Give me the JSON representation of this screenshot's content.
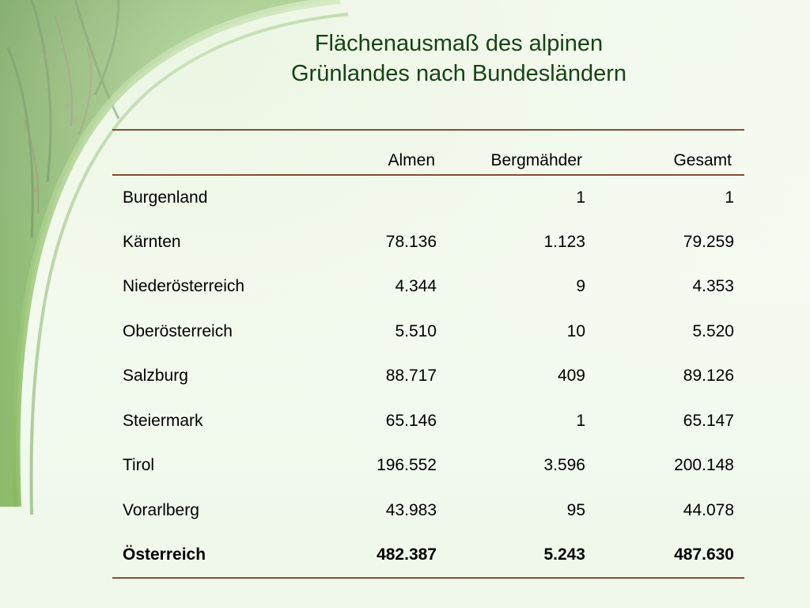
{
  "colors": {
    "title": "#154315",
    "rule": "#8a4c32",
    "background": "#f4faf0",
    "grass_band": "#4d8a2c"
  },
  "title": {
    "line1": "Flächenausmaß des alpinen",
    "line2": "Grünlandes nach Bundesländern"
  },
  "table": {
    "headers": {
      "name": "",
      "almen": "Almen",
      "bergmaehder": "Bergmähder",
      "gesamt": "Gesamt"
    },
    "rows": [
      {
        "name": "Burgenland",
        "almen": "",
        "bergmaehder": "1",
        "gesamt": "1"
      },
      {
        "name": "Kärnten",
        "almen": "78.136",
        "bergmaehder": "1.123",
        "gesamt": "79.259"
      },
      {
        "name": "Niederösterreich",
        "almen": "4.344",
        "bergmaehder": "9",
        "gesamt": "4.353"
      },
      {
        "name": "Oberösterreich",
        "almen": "5.510",
        "bergmaehder": "10",
        "gesamt": "5.520"
      },
      {
        "name": "Salzburg",
        "almen": "88.717",
        "bergmaehder": "409",
        "gesamt": "89.126"
      },
      {
        "name": "Steiermark",
        "almen": "65.146",
        "bergmaehder": "1",
        "gesamt": "65.147"
      },
      {
        "name": "Tirol",
        "almen": "196.552",
        "bergmaehder": "3.596",
        "gesamt": "200.148"
      },
      {
        "name": "Vorarlberg",
        "almen": "43.983",
        "bergmaehder": "95",
        "gesamt": "44.078"
      }
    ],
    "total": {
      "name": "Österreich",
      "almen": "482.387",
      "bergmaehder": "5.243",
      "gesamt": "487.630"
    }
  }
}
